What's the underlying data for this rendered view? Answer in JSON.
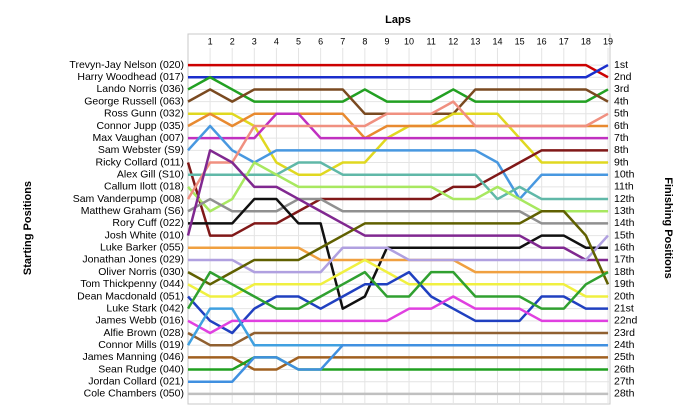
{
  "chart_data": {
    "type": "line",
    "title": "Laps",
    "y_label": "Starting Positions",
    "y2_label": "Finishing Positions",
    "x": [
      0,
      1,
      2,
      3,
      4,
      5,
      6,
      7,
      8,
      9,
      10,
      11,
      12,
      13,
      14,
      15,
      16,
      17,
      18,
      19
    ],
    "xlim": [
      0,
      19
    ],
    "xticks": [
      1,
      2,
      3,
      4,
      5,
      6,
      7,
      8,
      9,
      10,
      11,
      12,
      13,
      14,
      15,
      16,
      17,
      18,
      19
    ],
    "ylim": [
      0.5,
      28.5
    ],
    "yticks": [
      {
        "value": 1,
        "label": "1st"
      },
      {
        "value": 2,
        "label": "2nd"
      },
      {
        "value": 3,
        "label": "3rd"
      },
      {
        "value": 4,
        "label": "4th"
      },
      {
        "value": 5,
        "label": "5th"
      },
      {
        "value": 6,
        "label": "6th"
      },
      {
        "value": 7,
        "label": "7th"
      },
      {
        "value": 8,
        "label": "8th"
      },
      {
        "value": 9,
        "label": "9th"
      },
      {
        "value": 10,
        "label": "10th"
      },
      {
        "value": 11,
        "label": "11th"
      },
      {
        "value": 12,
        "label": "12th"
      },
      {
        "value": 13,
        "label": "13th"
      },
      {
        "value": 14,
        "label": "14th"
      },
      {
        "value": 15,
        "label": "15th"
      },
      {
        "value": 16,
        "label": "16th"
      },
      {
        "value": 17,
        "label": "17th"
      },
      {
        "value": 18,
        "label": "18th"
      },
      {
        "value": 19,
        "label": "19th"
      },
      {
        "value": 20,
        "label": "20th"
      },
      {
        "value": 21,
        "label": "21st"
      },
      {
        "value": 22,
        "label": "22nd"
      },
      {
        "value": 23,
        "label": "23rd"
      },
      {
        "value": 24,
        "label": "24th"
      },
      {
        "value": 25,
        "label": "25th"
      },
      {
        "value": 26,
        "label": "26th"
      },
      {
        "value": 27,
        "label": "27th"
      },
      {
        "value": 28,
        "label": "28th"
      }
    ],
    "grid": true,
    "series": [
      {
        "name": "Trevyn-Jay Nelson (020)",
        "color": "#cc0000",
        "values": [
          1,
          1,
          1,
          1,
          1,
          1,
          1,
          1,
          1,
          1,
          1,
          1,
          1,
          1,
          1,
          1,
          1,
          1,
          1,
          2
        ]
      },
      {
        "name": "Harry Woodhead (017)",
        "color": "#1a2ecc",
        "values": [
          2,
          2,
          2,
          2,
          2,
          2,
          2,
          2,
          2,
          2,
          2,
          2,
          2,
          2,
          2,
          2,
          2,
          2,
          2,
          1
        ]
      },
      {
        "name": "Lando Norris (036)",
        "color": "#22a022",
        "values": [
          3,
          2,
          3,
          4,
          4,
          4,
          4,
          4,
          3,
          4,
          4,
          4,
          3,
          4,
          4,
          4,
          4,
          4,
          4,
          3
        ]
      },
      {
        "name": "George Russell (063)",
        "color": "#7a4a20",
        "values": [
          4,
          3,
          4,
          3,
          3,
          3,
          3,
          3,
          5,
          5,
          5,
          5,
          5,
          3,
          3,
          3,
          3,
          3,
          3,
          4
        ]
      },
      {
        "name": "Ross Gunn (032)",
        "color": "#e0d820",
        "values": [
          5,
          5,
          5,
          6,
          9,
          10,
          10,
          9,
          9,
          7,
          6,
          6,
          5,
          5,
          5,
          7,
          9,
          9,
          9,
          9
        ]
      },
      {
        "name": "Connor Jupp (035)",
        "color": "#e88a30",
        "values": [
          6,
          5,
          6,
          5,
          5,
          5,
          5,
          5,
          7,
          6,
          6,
          6,
          6,
          6,
          6,
          6,
          6,
          6,
          6,
          6
        ]
      },
      {
        "name": "Max Vaughan (007)",
        "color": "#c030c0",
        "values": [
          7,
          7,
          7,
          7,
          5,
          5,
          7,
          7,
          7,
          7,
          7,
          7,
          7,
          7,
          7,
          7,
          7,
          7,
          7,
          7
        ]
      },
      {
        "name": "Sam Webster (S9)",
        "color": "#4898e0",
        "values": [
          8,
          6,
          8,
          9,
          8,
          8,
          8,
          8,
          8,
          8,
          8,
          8,
          8,
          8,
          9,
          12,
          10,
          10,
          10,
          10
        ]
      },
      {
        "name": "Ricky Collard (011)",
        "color": "#801818",
        "values": [
          9,
          15,
          15,
          14,
          14,
          13,
          12,
          12,
          12,
          12,
          12,
          12,
          11,
          11,
          10,
          9,
          8,
          8,
          8,
          8
        ]
      },
      {
        "name": "Alex Gill (S10)",
        "color": "#60b8a8",
        "values": [
          10,
          10,
          10,
          10,
          10,
          9,
          9,
          10,
          10,
          10,
          10,
          10,
          10,
          10,
          12,
          11,
          12,
          12,
          12,
          12
        ]
      },
      {
        "name": "Callum Ilott (018)",
        "color": "#a8e860",
        "values": [
          11,
          13,
          12,
          9,
          10,
          11,
          11,
          11,
          11,
          11,
          11,
          11,
          12,
          12,
          11,
          12,
          13,
          13,
          13,
          13
        ]
      },
      {
        "name": "Sam Vanderpump (008)",
        "color": "#f09080",
        "values": [
          12,
          9,
          9,
          6,
          6,
          6,
          6,
          6,
          6,
          5,
          5,
          5,
          4,
          6,
          6,
          6,
          6,
          6,
          6,
          5
        ]
      },
      {
        "name": "Matthew Graham (S6)",
        "color": "#909090",
        "values": [
          13,
          12,
          13,
          13,
          13,
          12,
          12,
          13,
          13,
          13,
          13,
          13,
          13,
          13,
          13,
          13,
          14,
          14,
          14,
          14
        ]
      },
      {
        "name": "Rory Cuff (022)",
        "color": "#101010",
        "values": [
          14,
          14,
          14,
          12,
          12,
          14,
          14,
          21,
          20,
          16,
          16,
          16,
          16,
          16,
          16,
          16,
          15,
          15,
          16,
          16
        ]
      },
      {
        "name": "Josh White (010)",
        "color": "#802890",
        "values": [
          15,
          8,
          9,
          11,
          11,
          12,
          13,
          14,
          15,
          15,
          15,
          15,
          15,
          15,
          15,
          15,
          16,
          16,
          17,
          17
        ]
      },
      {
        "name": "Luke Barker (055)",
        "color": "#f0a040",
        "values": [
          16,
          16,
          16,
          16,
          16,
          16,
          17,
          17,
          17,
          17,
          17,
          17,
          17,
          18,
          18,
          18,
          18,
          18,
          18,
          18
        ]
      },
      {
        "name": "Jonathan Jones (029)",
        "color": "#b0a0e0",
        "values": [
          17,
          17,
          17,
          18,
          18,
          18,
          18,
          16,
          16,
          16,
          17,
          17,
          17,
          17,
          17,
          17,
          17,
          17,
          17,
          15
        ]
      },
      {
        "name": "Oliver Norris (030)",
        "color": "#606000",
        "values": [
          18,
          19,
          18,
          17,
          17,
          17,
          16,
          15,
          14,
          14,
          14,
          14,
          14,
          14,
          14,
          14,
          13,
          13,
          15,
          19
        ]
      },
      {
        "name": "Tom Thickpenny (044)",
        "color": "#f0f040",
        "values": [
          19,
          20,
          20,
          19,
          19,
          19,
          19,
          18,
          17,
          18,
          19,
          19,
          19,
          19,
          19,
          19,
          19,
          19,
          20,
          20
        ]
      },
      {
        "name": "Dean Macdonald (051)",
        "color": "#2040c0",
        "values": [
          20,
          22,
          23,
          21,
          20,
          20,
          21,
          20,
          19,
          19,
          18,
          20,
          21,
          22,
          22,
          22,
          20,
          20,
          21,
          21
        ]
      },
      {
        "name": "Luke Stark (042)",
        "color": "#30a030",
        "values": [
          21,
          18,
          19,
          20,
          21,
          21,
          20,
          19,
          18,
          20,
          20,
          18,
          18,
          20,
          20,
          20,
          21,
          21,
          19,
          18
        ]
      },
      {
        "name": "James Webb (016)",
        "color": "#e040e0",
        "values": [
          22,
          23,
          22,
          22,
          22,
          22,
          22,
          22,
          22,
          22,
          21,
          21,
          20,
          21,
          21,
          21,
          22,
          22,
          22,
          22
        ]
      },
      {
        "name": "Alfie Brown (028)",
        "color": "#906030",
        "values": [
          23,
          24,
          24,
          23,
          23,
          23,
          23,
          23,
          23,
          23,
          23,
          23,
          23,
          23,
          23,
          23,
          23,
          23,
          23,
          23
        ]
      },
      {
        "name": "Connor Mills (019)",
        "color": "#40a0e0",
        "values": [
          24,
          21,
          21,
          24,
          24,
          24,
          24,
          24,
          24,
          24,
          24,
          24,
          24,
          24,
          24,
          24,
          24,
          24,
          24,
          24
        ]
      },
      {
        "name": "James Manning (046)",
        "color": "#a06020",
        "values": [
          25,
          25,
          25,
          26,
          26,
          25,
          25,
          25,
          25,
          25,
          25,
          25,
          25,
          25,
          25,
          25,
          25,
          25,
          25,
          25
        ]
      },
      {
        "name": "Sean Rudge (040)",
        "color": "#20a020",
        "values": [
          26,
          26,
          26,
          25,
          25,
          26,
          26,
          26,
          26,
          26,
          26,
          26,
          26,
          26,
          26,
          26,
          26,
          26,
          26,
          26
        ]
      },
      {
        "name": "Jordan Collard (021)",
        "color": "#4090e0",
        "values": [
          27,
          27,
          27,
          25,
          25,
          26,
          26,
          24,
          24,
          24,
          24,
          24,
          24,
          24,
          24,
          24,
          24,
          24,
          24,
          24
        ]
      },
      {
        "name": "Cole Chambers (050)",
        "color": "#c0c0c0",
        "values": [
          28,
          28,
          28,
          28,
          28,
          28,
          28,
          28,
          28,
          28,
          28,
          28,
          28,
          28,
          28,
          28,
          28,
          28,
          28,
          28
        ]
      }
    ]
  }
}
